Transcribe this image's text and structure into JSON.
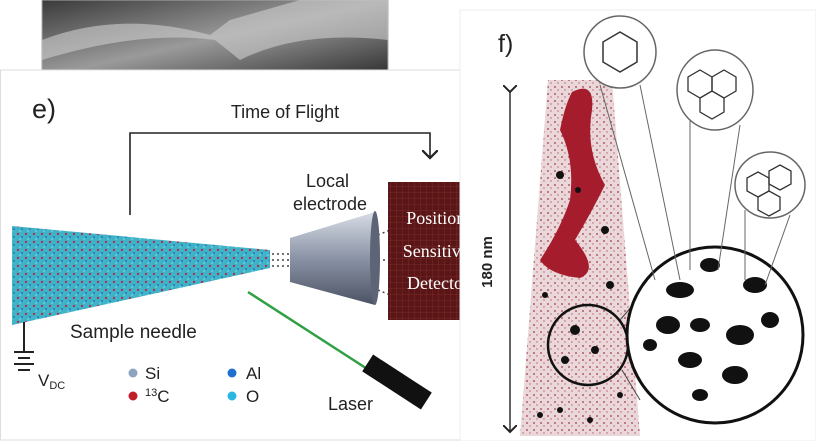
{
  "panel_e": {
    "label": "e)",
    "time_of_flight": "Time of Flight",
    "electrode_label": [
      "Local",
      "electrode"
    ],
    "detector_label": [
      "Position",
      "Sensitive",
      "Detector"
    ],
    "needle_label": "Sample needle",
    "voltage": {
      "symbol": "V",
      "subscript": "DC"
    },
    "legend": {
      "si": "Si",
      "c13": {
        "mass": "13",
        "symbol": "C"
      },
      "al": "Al",
      "o": "O"
    },
    "laser_label": "Laser"
  },
  "panel_f": {
    "label": "f)",
    "scale": "180 nm"
  }
}
